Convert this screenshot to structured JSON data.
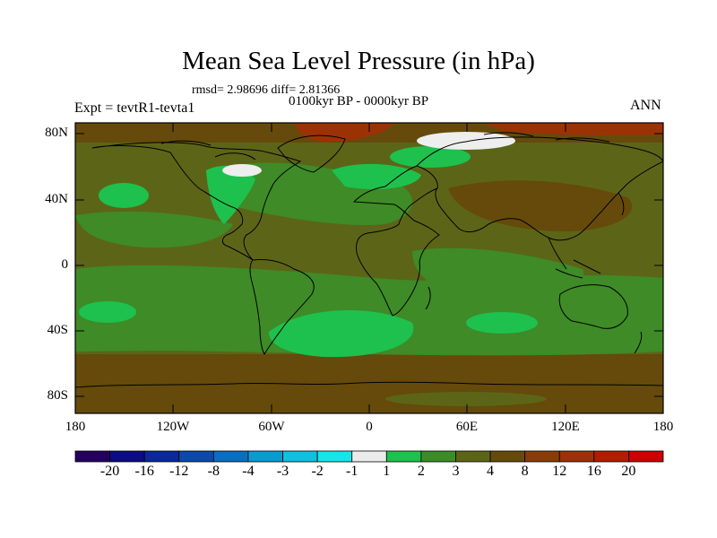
{
  "header": {
    "title": "Mean Sea Level Pressure (in hPa)",
    "stats": "rmsd= 2.98696 diff= 2.81366",
    "period": "0100kyr BP - 0000kyr BP",
    "experiment": "Expt = tevtR1-tevta1",
    "season": "ANN"
  },
  "map": {
    "lat_labels": [
      "80N",
      "40N",
      "0",
      "40S",
      "80S"
    ],
    "lon_labels": [
      "180",
      "120W",
      "60W",
      "0",
      "60E",
      "120E",
      "180"
    ],
    "lat_range": [
      -90,
      90
    ],
    "lon_range": [
      -180,
      180
    ],
    "field_colors": {
      "brown": "#654a0b",
      "olive": "#5c6517",
      "midgreen": "#3e8b27",
      "brightgreen": "#1ec14d",
      "white": "#eeeeee",
      "red": "#9b3205"
    }
  },
  "colorbar": {
    "labels": [
      "-20",
      "-16",
      "-12",
      "-8",
      "-4",
      "-3",
      "-2",
      "-1",
      "1",
      "2",
      "3",
      "4",
      "8",
      "12",
      "16",
      "20"
    ],
    "colors": [
      "#24005e",
      "#0c0c84",
      "#0a2898",
      "#0a4aa8",
      "#0a6fc0",
      "#0a9ad0",
      "#12bfe0",
      "#17e4e8",
      "#ebebeb",
      "#1ec14d",
      "#3b8c27",
      "#5c6517",
      "#654a0b",
      "#8a3c07",
      "#9b3205",
      "#b01e02",
      "#cc0000"
    ]
  }
}
